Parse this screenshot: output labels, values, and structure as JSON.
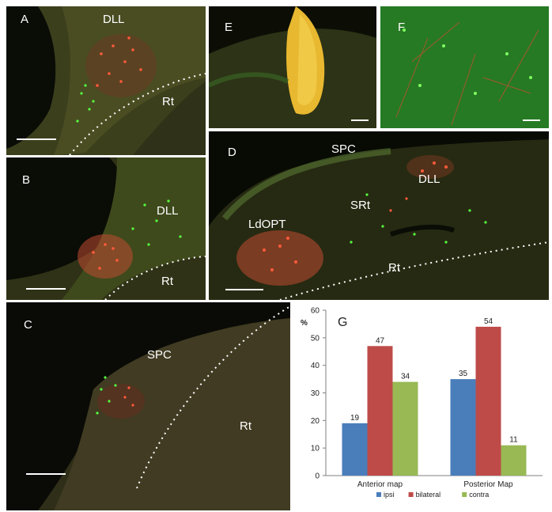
{
  "panels": {
    "A": {
      "label": "A",
      "regions": [
        "DLL",
        "Rt"
      ]
    },
    "B": {
      "label": "B",
      "regions": [
        "DLL",
        "Rt"
      ]
    },
    "C": {
      "label": "C",
      "regions": [
        "SPC",
        "Rt"
      ]
    },
    "D": {
      "label": "D",
      "regions": [
        "SPC",
        "DLL",
        "SRt",
        "LdOPT",
        "Rt"
      ]
    },
    "E": {
      "label": "E"
    },
    "F": {
      "label": "F"
    }
  },
  "chart_data": {
    "type": "bar",
    "panel_label": "G",
    "ylabel": "%",
    "ylim": [
      0,
      60
    ],
    "yticks": [
      0,
      10,
      20,
      30,
      40,
      50,
      60
    ],
    "categories": [
      "Anterior map",
      "Posterior Map"
    ],
    "series": [
      {
        "name": "ipsi",
        "values": [
          19,
          35
        ],
        "color": "#4a7ebb"
      },
      {
        "name": "bilateral",
        "values": [
          47,
          54
        ],
        "color": "#be4b48"
      },
      {
        "name": "contra",
        "values": [
          34,
          11
        ],
        "color": "#98b954"
      }
    ],
    "grid": false,
    "legend": "bottom"
  }
}
